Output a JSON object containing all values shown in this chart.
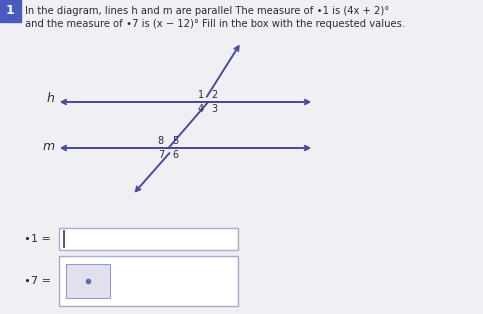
{
  "bg_color": "#f0f0f4",
  "header_color": "#4a5abf",
  "header_text": "1",
  "title_line1": "In the diagram, lines h and m are parallel The measure of ∙1 is (4x + 2)°",
  "title_line2": "and the measure of ∙7 is (x − 12)° Fill in the box with the requested values.",
  "text_color": "#2a2a3a",
  "line_color": "#4a4a9a",
  "box_border_color": "#aaaacc",
  "inner_box_color": "#e0e0ee",
  "lw": 1.4,
  "h_label": "h",
  "m_label": "m",
  "angle1_label": "∙1 =",
  "angle7_label": "∙7 ="
}
